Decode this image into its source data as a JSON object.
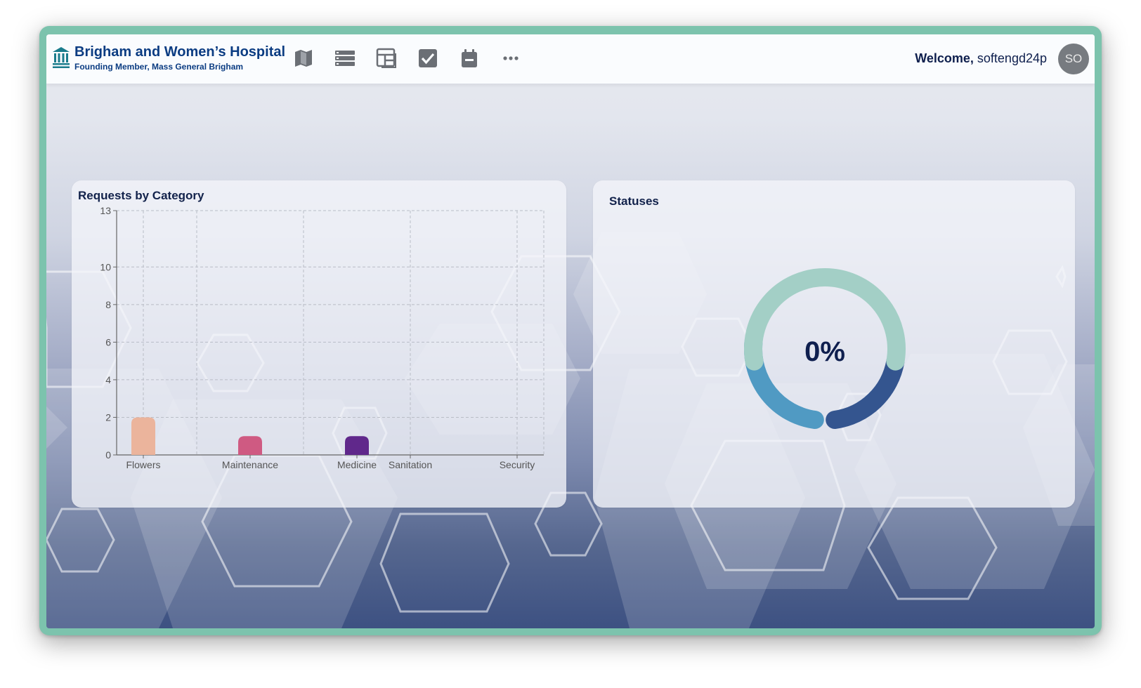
{
  "header": {
    "brand_title": "Brigham and Women’s Hospital",
    "brand_subtitle": "Founding Member, Mass General Brigham",
    "nav_icons": [
      "map-icon",
      "list-icon",
      "dashboard-icon",
      "checkbox-icon",
      "calendar-icon",
      "more-icon"
    ],
    "welcome_label": "Welcome,",
    "username": "softengd24p",
    "avatar_initials": "SO"
  },
  "requests_card": {
    "title": "Requests by Category"
  },
  "statuses_card": {
    "title": "Statuses",
    "percent_label": "0%"
  },
  "colors": {
    "brand": "#0b3c82",
    "flowers": "#ebb49c",
    "maintenance": "#cf5a82",
    "medicine": "#60288b",
    "donut_light": "#a3cfc6",
    "donut_mid": "#509ac3",
    "donut_dark": "#34558f"
  },
  "chart_data": {
    "type": "bar",
    "categories": [
      "Flowers",
      "Maintenance",
      "Medicine",
      "Sanitation",
      "Security"
    ],
    "values": [
      2,
      1,
      1,
      0,
      0
    ],
    "y_ticks": [
      0,
      2,
      4,
      6,
      8,
      10,
      13
    ],
    "ylim": [
      0,
      13
    ],
    "title": "Requests by Category",
    "xlabel": "",
    "ylabel": "",
    "grid": true
  }
}
